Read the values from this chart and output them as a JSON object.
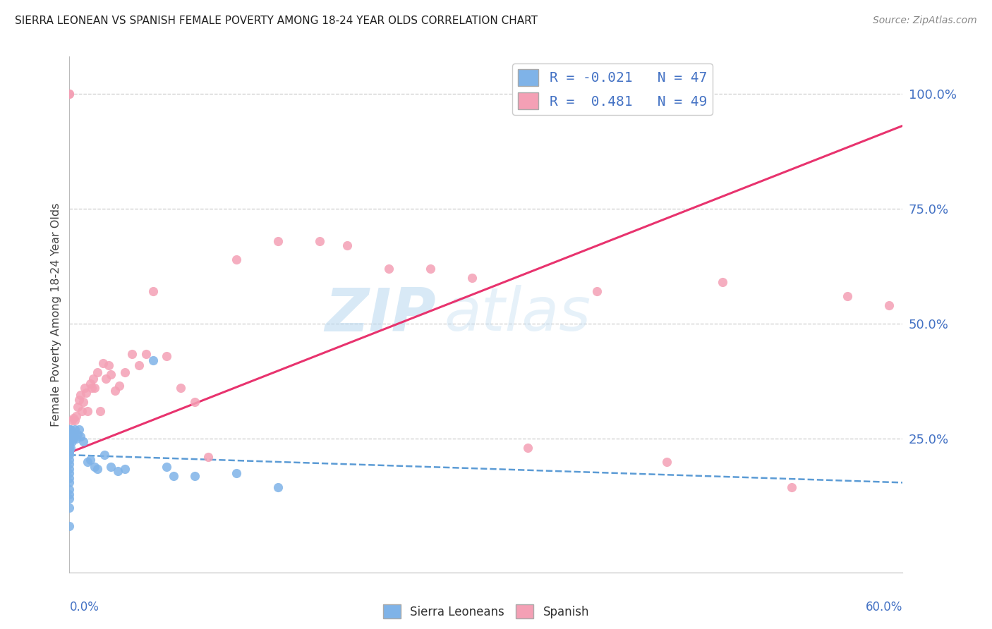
{
  "title": "SIERRA LEONEAN VS SPANISH FEMALE POVERTY AMONG 18-24 YEAR OLDS CORRELATION CHART",
  "source": "Source: ZipAtlas.com",
  "ylabel": "Female Poverty Among 18-24 Year Olds",
  "x_left_label": "0.0%",
  "x_right_label": "60.0%",
  "xlim": [
    0.0,
    0.6
  ],
  "ylim": [
    -0.04,
    1.08
  ],
  "yticks": [
    0.25,
    0.5,
    0.75,
    1.0
  ],
  "ytick_labels": [
    "25.0%",
    "50.0%",
    "75.0%",
    "100.0%"
  ],
  "legend_r1": "R = -0.021   N = 47",
  "legend_r2": "R =  0.481   N = 49",
  "sierra_color": "#7fb3e8",
  "spanish_color": "#f4a0b5",
  "sierra_line_color": "#5b9bd5",
  "spanish_line_color": "#e8336e",
  "watermark_zip": "ZIP",
  "watermark_atlas": "atlas",
  "sierra_x": [
    0.0,
    0.0,
    0.0,
    0.0,
    0.0,
    0.0,
    0.0,
    0.0,
    0.0,
    0.0,
    0.0,
    0.0,
    0.0,
    0.0,
    0.0,
    0.0,
    0.0,
    0.0,
    0.0,
    0.0,
    0.001,
    0.001,
    0.001,
    0.002,
    0.002,
    0.003,
    0.003,
    0.004,
    0.005,
    0.006,
    0.007,
    0.008,
    0.01,
    0.013,
    0.015,
    0.018,
    0.02,
    0.025,
    0.03,
    0.035,
    0.04,
    0.06,
    0.07,
    0.075,
    0.09,
    0.12,
    0.15
  ],
  "sierra_y": [
    0.27,
    0.26,
    0.255,
    0.25,
    0.24,
    0.23,
    0.225,
    0.22,
    0.215,
    0.205,
    0.195,
    0.185,
    0.175,
    0.165,
    0.155,
    0.14,
    0.13,
    0.12,
    0.1,
    0.06,
    0.27,
    0.255,
    0.23,
    0.265,
    0.245,
    0.26,
    0.25,
    0.27,
    0.25,
    0.26,
    0.27,
    0.255,
    0.245,
    0.2,
    0.205,
    0.19,
    0.185,
    0.215,
    0.19,
    0.18,
    0.185,
    0.42,
    0.19,
    0.17,
    0.17,
    0.175,
    0.145
  ],
  "spanish_x": [
    0.0,
    0.002,
    0.003,
    0.004,
    0.005,
    0.006,
    0.007,
    0.008,
    0.009,
    0.01,
    0.011,
    0.012,
    0.013,
    0.015,
    0.016,
    0.017,
    0.018,
    0.02,
    0.022,
    0.024,
    0.026,
    0.028,
    0.03,
    0.033,
    0.036,
    0.04,
    0.045,
    0.05,
    0.055,
    0.06,
    0.07,
    0.08,
    0.09,
    0.1,
    0.12,
    0.15,
    0.18,
    0.2,
    0.23,
    0.26,
    0.29,
    0.33,
    0.38,
    0.43,
    0.47,
    0.52,
    0.56,
    0.59,
    0.0
  ],
  "spanish_y": [
    1.0,
    0.29,
    0.295,
    0.29,
    0.3,
    0.32,
    0.335,
    0.345,
    0.31,
    0.33,
    0.36,
    0.35,
    0.31,
    0.37,
    0.36,
    0.38,
    0.36,
    0.395,
    0.31,
    0.415,
    0.38,
    0.41,
    0.39,
    0.355,
    0.365,
    0.395,
    0.435,
    0.41,
    0.435,
    0.57,
    0.43,
    0.36,
    0.33,
    0.21,
    0.64,
    0.68,
    0.68,
    0.67,
    0.62,
    0.62,
    0.6,
    0.23,
    0.57,
    0.2,
    0.59,
    0.145,
    0.56,
    0.54,
    1.0
  ],
  "spanish_line_x0": 0.0,
  "spanish_line_y0": 0.22,
  "spanish_line_x1": 0.6,
  "spanish_line_y1": 0.93,
  "sierra_line_x0": 0.0,
  "sierra_line_y0": 0.215,
  "sierra_line_x1": 0.6,
  "sierra_line_y1": 0.155
}
